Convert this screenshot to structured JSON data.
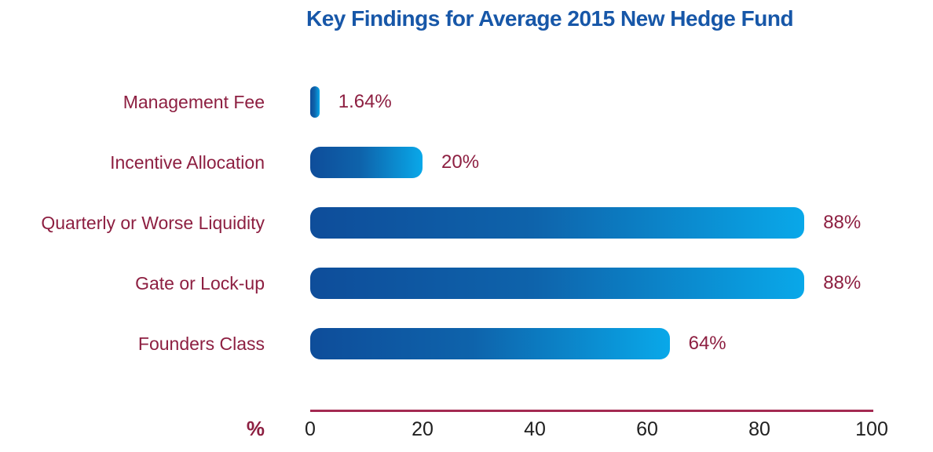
{
  "chart_data": {
    "type": "bar",
    "orientation": "horizontal",
    "title": "Key Findings for Average 2015 New Hedge Fund",
    "categories": [
      "Management Fee",
      "Incentive Allocation",
      "Quarterly or Worse Liquidity",
      "Gate or Lock-up",
      "Founders Class"
    ],
    "values": [
      1.64,
      20,
      88,
      88,
      64
    ],
    "value_labels": [
      "1.64%",
      "20%",
      "88%",
      "88%",
      "64%"
    ],
    "xlabel": "%",
    "xlim": [
      0,
      100
    ],
    "x_ticks": [
      "0",
      "20",
      "40",
      "60",
      "80",
      "100"
    ],
    "grid": false,
    "legend": "none",
    "colors": {
      "bar_gradient_start": "#0e4d9a",
      "bar_gradient_mid": "#0e63ab",
      "bar_gradient_end": "#09a8e9",
      "title_text": "#1757a8",
      "category_text": "#8d1f41",
      "value_text": "#8d1f41",
      "axis_line": "#a42a52",
      "tick_text": "#1f1f1f",
      "background": "#ffffff"
    }
  }
}
